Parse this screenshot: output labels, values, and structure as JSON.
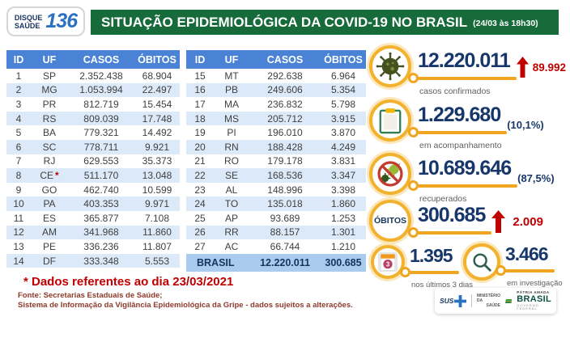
{
  "header": {
    "hotline": {
      "line1": "DISQUE",
      "line2": "SAÚDE",
      "number": "136"
    },
    "title": "SITUAÇÃO EPIDEMIOLÓGICA DA COVID-19 NO BRASIL",
    "datetime": "(24/03 às 18h30)"
  },
  "table": {
    "columns": [
      "ID",
      "UF",
      "CASOS",
      "ÓBITOS"
    ],
    "left_rows": [
      {
        "id": "1",
        "uf": "SP",
        "casos": "2.352.438",
        "obitos": "68.904"
      },
      {
        "id": "2",
        "uf": "MG",
        "casos": "1.053.994",
        "obitos": "22.497"
      },
      {
        "id": "3",
        "uf": "PR",
        "casos": "812.719",
        "obitos": "15.454"
      },
      {
        "id": "4",
        "uf": "RS",
        "casos": "809.039",
        "obitos": "17.748"
      },
      {
        "id": "5",
        "uf": "BA",
        "casos": "779.321",
        "obitos": "14.492"
      },
      {
        "id": "6",
        "uf": "SC",
        "casos": "778.711",
        "obitos": "9.921"
      },
      {
        "id": "7",
        "uf": "RJ",
        "casos": "629.553",
        "obitos": "35.373"
      },
      {
        "id": "8",
        "uf": "CE",
        "star": true,
        "casos": "511.170",
        "obitos": "13.048"
      },
      {
        "id": "9",
        "uf": "GO",
        "casos": "462.740",
        "obitos": "10.599"
      },
      {
        "id": "10",
        "uf": "PA",
        "casos": "403.353",
        "obitos": "9.971"
      },
      {
        "id": "11",
        "uf": "ES",
        "casos": "365.877",
        "obitos": "7.108"
      },
      {
        "id": "12",
        "uf": "AM",
        "casos": "341.968",
        "obitos": "11.860"
      },
      {
        "id": "13",
        "uf": "PE",
        "casos": "336.236",
        "obitos": "11.807"
      },
      {
        "id": "14",
        "uf": "DF",
        "casos": "333.348",
        "obitos": "5.553"
      }
    ],
    "right_rows": [
      {
        "id": "15",
        "uf": "MT",
        "casos": "292.638",
        "obitos": "6.964"
      },
      {
        "id": "16",
        "uf": "PB",
        "casos": "249.606",
        "obitos": "5.354"
      },
      {
        "id": "17",
        "uf": "MA",
        "casos": "236.832",
        "obitos": "5.798"
      },
      {
        "id": "18",
        "uf": "MS",
        "casos": "205.712",
        "obitos": "3.915"
      },
      {
        "id": "19",
        "uf": "PI",
        "casos": "196.010",
        "obitos": "3.870"
      },
      {
        "id": "20",
        "uf": "RN",
        "casos": "188.428",
        "obitos": "4.249"
      },
      {
        "id": "21",
        "uf": "RO",
        "casos": "179.178",
        "obitos": "3.831"
      },
      {
        "id": "22",
        "uf": "SE",
        "casos": "168.536",
        "obitos": "3.347"
      },
      {
        "id": "23",
        "uf": "AL",
        "casos": "148.996",
        "obitos": "3.398"
      },
      {
        "id": "24",
        "uf": "TO",
        "casos": "135.018",
        "obitos": "1.860"
      },
      {
        "id": "25",
        "uf": "AP",
        "casos": "93.689",
        "obitos": "1.253"
      },
      {
        "id": "26",
        "uf": "RR",
        "casos": "88.157",
        "obitos": "1.301"
      },
      {
        "id": "27",
        "uf": "AC",
        "casos": "66.744",
        "obitos": "1.210"
      }
    ],
    "total": {
      "label": "BRASIL",
      "casos": "12.220.011",
      "obitos": "300.685"
    }
  },
  "stats": {
    "confirmed": {
      "value": "12.220.011",
      "delta": "89.992",
      "label": "casos confirmados"
    },
    "monitoring": {
      "value": "1.229.680",
      "percent": "(10,1%)",
      "label": "em acompanhamento"
    },
    "recovered": {
      "value": "10.689.646",
      "percent": "(87,5%)",
      "label": "recuperados"
    },
    "deaths": {
      "badge": "ÓBITOS",
      "value": "300.685",
      "delta": "2.009"
    },
    "deaths_recent": {
      "value": "1.395",
      "label": "nos últimos 3 dias",
      "icon_day": "3"
    },
    "investigation": {
      "value": "3.466",
      "label": "em investigação"
    }
  },
  "footer": {
    "note": "* Dados referentes ao dia 23/03/2021",
    "source_line1": "Fonte: Secretarias Estaduais de Saúde;",
    "source_line2": "Sistema de Informação da Vigilância Epidemiológica da Gripe - dados sujeitos a alterações.",
    "gov_logos": {
      "sus": "SUS",
      "ministry_line1": "MINISTÉRIO DA",
      "ministry_line2": "SAÚDE",
      "patria": "PÁTRIA AMADA",
      "brasil": "BRASIL",
      "governo": "GOVERNO FEDERAL"
    }
  },
  "colors": {
    "header_green": "#176b3a",
    "table_header_blue": "#4a82d6",
    "row_alt_blue": "#dbe9f8",
    "total_row_blue": "#a9cbee",
    "number_navy": "#17376b",
    "alert_red": "#c00000",
    "gold": "#efa51f"
  },
  "chart_data": {
    "type": "table",
    "title": "SITUAÇÃO EPIDEMIOLÓGICA DA COVID-19 NO BRASIL (24/03 às 18h30)",
    "columns": [
      "ID",
      "UF",
      "CASOS",
      "ÓBITOS"
    ],
    "rows": [
      [
        1,
        "SP",
        2352438,
        68904
      ],
      [
        2,
        "MG",
        1053994,
        22497
      ],
      [
        3,
        "PR",
        812719,
        15454
      ],
      [
        4,
        "RS",
        809039,
        17748
      ],
      [
        5,
        "BA",
        779321,
        14492
      ],
      [
        6,
        "SC",
        778711,
        9921
      ],
      [
        7,
        "RJ",
        629553,
        35373
      ],
      [
        8,
        "CE",
        511170,
        13048
      ],
      [
        9,
        "GO",
        462740,
        10599
      ],
      [
        10,
        "PA",
        403353,
        9971
      ],
      [
        11,
        "ES",
        365877,
        7108
      ],
      [
        12,
        "AM",
        341968,
        11860
      ],
      [
        13,
        "PE",
        336236,
        11807
      ],
      [
        14,
        "DF",
        333348,
        5553
      ],
      [
        15,
        "MT",
        292638,
        6964
      ],
      [
        16,
        "PB",
        249606,
        5354
      ],
      [
        17,
        "MA",
        236832,
        5798
      ],
      [
        18,
        "MS",
        205712,
        3915
      ],
      [
        19,
        "PI",
        196010,
        3870
      ],
      [
        20,
        "RN",
        188428,
        4249
      ],
      [
        21,
        "RO",
        179178,
        3831
      ],
      [
        22,
        "SE",
        168536,
        3347
      ],
      [
        23,
        "AL",
        148996,
        3398
      ],
      [
        24,
        "TO",
        135018,
        1860
      ],
      [
        25,
        "AP",
        93689,
        1253
      ],
      [
        26,
        "RR",
        88157,
        1301
      ],
      [
        27,
        "AC",
        66744,
        1210
      ]
    ],
    "total_row": [
      "BRASIL",
      12220011,
      300685
    ],
    "summary": {
      "casos_confirmados": 12220011,
      "novos_casos_24h": 89992,
      "em_acompanhamento": 1229680,
      "em_acompanhamento_pct": 10.1,
      "recuperados": 10689646,
      "recuperados_pct": 87.5,
      "obitos": 300685,
      "novos_obitos_24h": 2009,
      "obitos_ultimos_3_dias": 1395,
      "obitos_em_investigacao": 3466,
      "data_referencia": "23/03/2021"
    }
  }
}
